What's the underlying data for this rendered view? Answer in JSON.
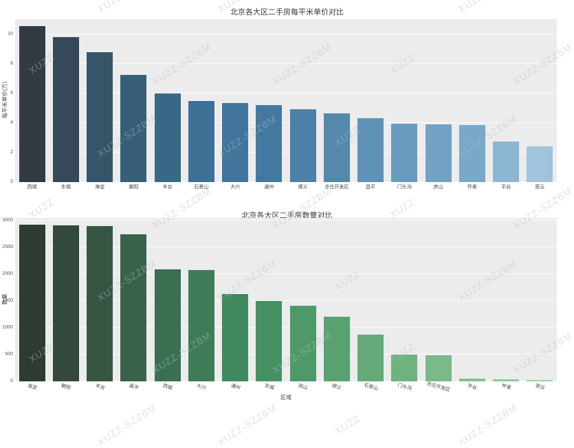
{
  "watermark": {
    "text_primary": "XUZZ-SZZBM",
    "text_secondary": "XUZZ"
  },
  "chart_data": [
    {
      "type": "bar",
      "title": "北京各大区二手房每平米单价对比",
      "xlabel": "",
      "ylabel": "每平米单价(万)",
      "categories": [
        "西城",
        "东城",
        "海淀",
        "朝阳",
        "丰台",
        "石景山",
        "大兴",
        "通州",
        "顺义",
        "亦庄开发区",
        "昌平",
        "门头沟",
        "房山",
        "怀柔",
        "平谷",
        "密云"
      ],
      "values": [
        10.55,
        9.8,
        8.76,
        7.26,
        6.01,
        5.47,
        5.35,
        5.19,
        4.91,
        4.65,
        4.34,
        3.95,
        3.92,
        3.87,
        2.74,
        2.4
      ],
      "ylim": [
        0,
        11
      ],
      "yticks": [
        0,
        2,
        4,
        6,
        8,
        10
      ],
      "grid": true,
      "legend": "none",
      "plot_bg": "#ececec",
      "bar_colors": [
        "#333b42",
        "#35495a",
        "#365569",
        "#375f78",
        "#386887",
        "#3d7095",
        "#40759c",
        "#4379a1",
        "#4c81a7",
        "#5589ac",
        "#5f92b6",
        "#699bbe",
        "#71a2c4",
        "#79a8c9",
        "#8cb6d4",
        "#a0c3de"
      ]
    },
    {
      "type": "bar",
      "title": "北京各大区二手房数量对比",
      "xlabel": "区域",
      "ylabel": "数量",
      "categories": [
        "海淀",
        "朝阳",
        "丰台",
        "昌平",
        "西城",
        "大兴",
        "通州",
        "东城",
        "房山",
        "顺义",
        "石景山",
        "门头沟",
        "亦庄开发区",
        "平谷",
        "怀柔",
        "密云"
      ],
      "values": [
        2920,
        2910,
        2900,
        2745,
        2090,
        2080,
        1630,
        1500,
        1410,
        1205,
        870,
        500,
        487,
        51,
        38,
        26
      ],
      "ylim": [
        0,
        3050
      ],
      "yticks": [
        0,
        500,
        1000,
        1500,
        2000,
        2500,
        3000
      ],
      "grid": true,
      "legend": "none",
      "plot_bg": "#ececec",
      "bar_colors": [
        "#2e3b32",
        "#33493b",
        "#355643",
        "#38634a",
        "#3a7051",
        "#3d7c57",
        "#40885d",
        "#459162",
        "#4e9968",
        "#58a171",
        "#63aa78",
        "#6eb280",
        "#79ba88",
        "#84c190",
        "#8fc897",
        "#9ad09f"
      ]
    }
  ]
}
